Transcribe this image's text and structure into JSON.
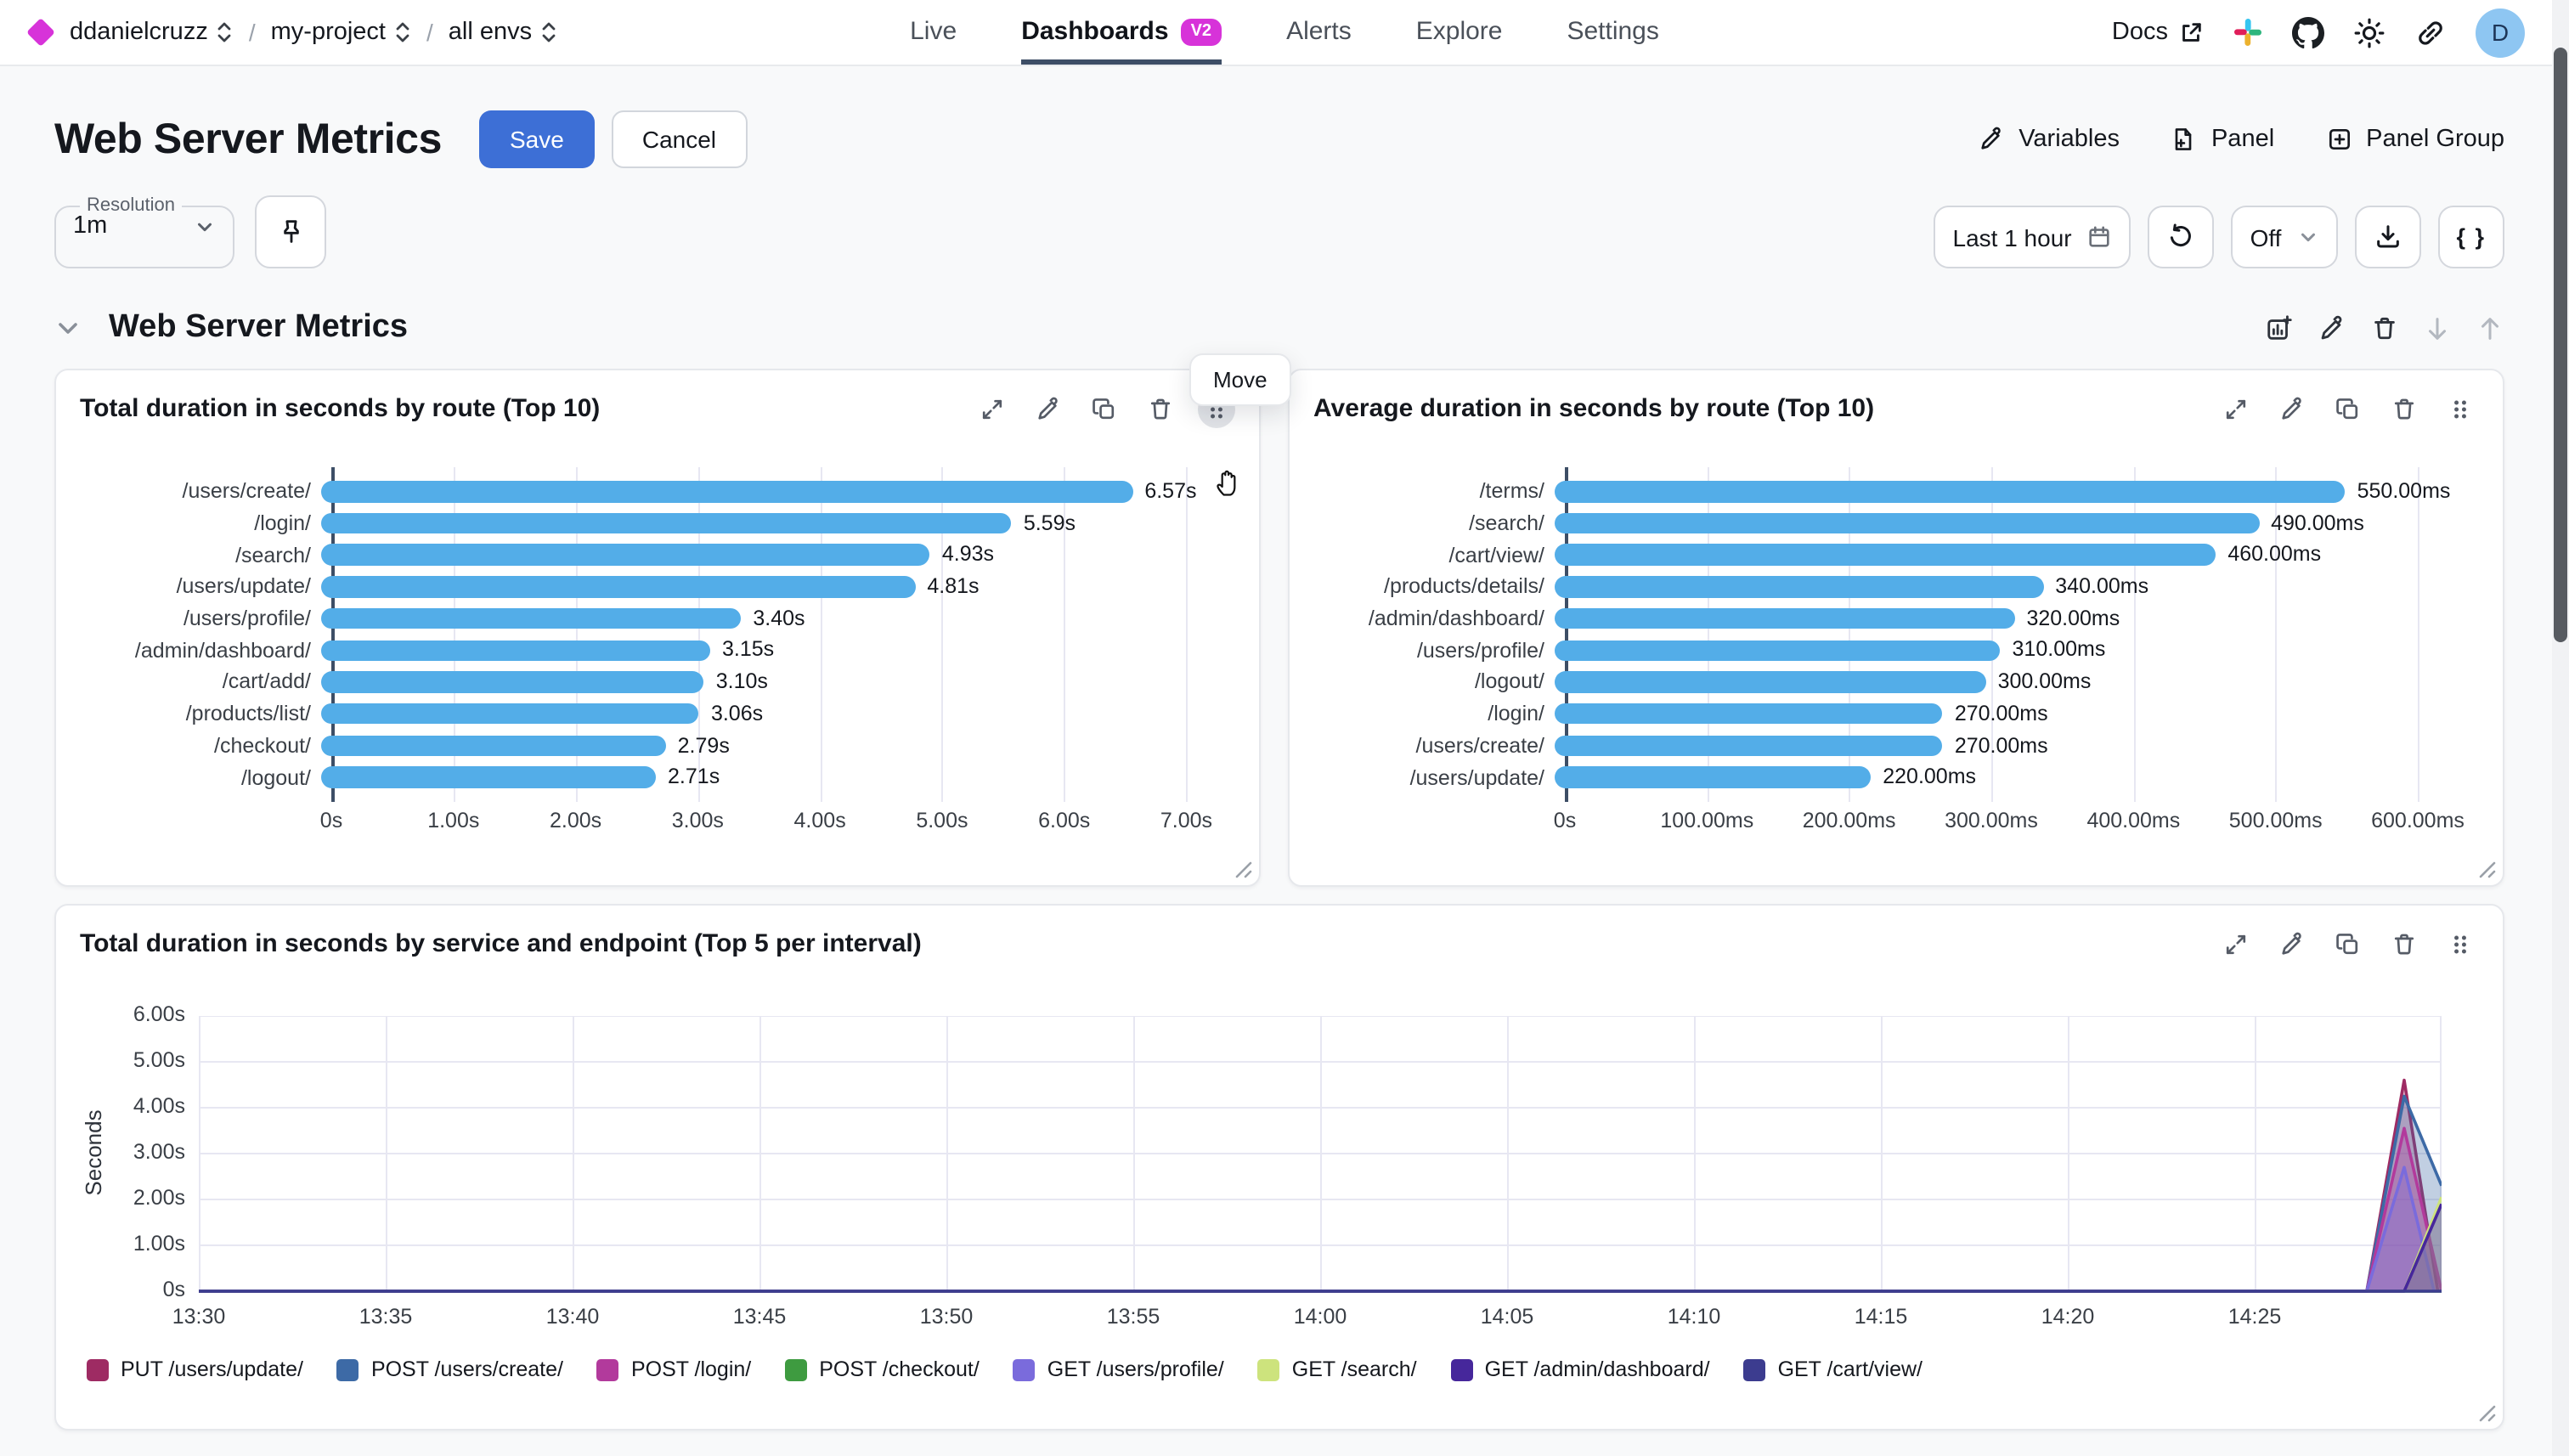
{
  "header": {
    "breadcrumb": [
      {
        "label": "ddanielcruzz"
      },
      {
        "label": "my-project"
      },
      {
        "label": "all envs"
      }
    ],
    "nav": [
      {
        "label": "Live",
        "active": false
      },
      {
        "label": "Dashboards",
        "badge": "V2",
        "active": true
      },
      {
        "label": "Alerts",
        "active": false
      },
      {
        "label": "Explore",
        "active": false
      },
      {
        "label": "Settings",
        "active": false
      }
    ],
    "docs_label": "Docs",
    "avatar_initial": "D"
  },
  "toolbar": {
    "title": "Web Server Metrics",
    "save_label": "Save",
    "cancel_label": "Cancel",
    "variables_label": "Variables",
    "panel_label": "Panel",
    "panel_group_label": "Panel Group"
  },
  "controls": {
    "resolution_label": "Resolution",
    "resolution_value": "1m",
    "time_range": "Last 1 hour",
    "refresh_interval": "Off",
    "braces_label": "{ }"
  },
  "section": {
    "title": "Web Server Metrics",
    "move_tooltip": "Move"
  },
  "colors": {
    "accent_blue": "#3d6fd6",
    "bar_blue": "#53ade8",
    "badge_magenta": "#d733d9",
    "active_tab_underline": "#3d4e66"
  },
  "chart_data": [
    {
      "type": "bar",
      "orientation": "horizontal",
      "title": "Total duration in seconds by route (Top 10)",
      "categories": [
        "/users/create/",
        "/login/",
        "/search/",
        "/users/update/",
        "/users/profile/",
        "/admin/dashboard/",
        "/cart/add/",
        "/products/list/",
        "/checkout/",
        "/logout/"
      ],
      "values": [
        6.57,
        5.59,
        4.93,
        4.81,
        3.4,
        3.15,
        3.1,
        3.06,
        2.79,
        2.71
      ],
      "value_labels": [
        "6.57s",
        "5.59s",
        "4.93s",
        "4.81s",
        "3.40s",
        "3.15s",
        "3.10s",
        "3.06s",
        "2.79s",
        "2.71s"
      ],
      "unit": "s",
      "ticks": [
        0,
        1,
        2,
        3,
        4,
        5,
        6,
        7
      ],
      "tick_labels": [
        "0s",
        "1.00s",
        "2.00s",
        "3.00s",
        "4.00s",
        "5.00s",
        "6.00s",
        "7.00s"
      ],
      "xlim": [
        0,
        7.4
      ],
      "bar_color": "#53ade8",
      "grid": true
    },
    {
      "type": "bar",
      "orientation": "horizontal",
      "title": "Average duration in seconds by route (Top 10)",
      "categories": [
        "/terms/",
        "/search/",
        "/cart/view/",
        "/products/details/",
        "/admin/dashboard/",
        "/users/profile/",
        "/logout/",
        "/login/",
        "/users/create/",
        "/users/update/"
      ],
      "values": [
        550,
        490,
        460,
        340,
        320,
        310,
        300,
        270,
        270,
        220
      ],
      "value_labels": [
        "550.00ms",
        "490.00ms",
        "460.00ms",
        "340.00ms",
        "320.00ms",
        "310.00ms",
        "300.00ms",
        "270.00ms",
        "270.00ms",
        "220.00ms"
      ],
      "unit": "ms",
      "ticks": [
        0,
        100,
        200,
        300,
        400,
        500,
        600
      ],
      "tick_labels": [
        "0s",
        "100.00ms",
        "200.00ms",
        "300.00ms",
        "400.00ms",
        "500.00ms",
        "600.00ms"
      ],
      "xlim": [
        0,
        643
      ],
      "bar_color": "#53ade8",
      "grid": true
    },
    {
      "type": "area",
      "title": "Total duration in seconds by service and endpoint (Top 5 per interval)",
      "ylabel": "Seconds",
      "y_ticks": [
        6,
        5,
        4,
        3,
        2,
        1,
        0
      ],
      "y_tick_labels": [
        "6.00s",
        "5.00s",
        "4.00s",
        "3.00s",
        "2.00s",
        "1.00s",
        "0s"
      ],
      "ylim": [
        0,
        6
      ],
      "x_domain_minutes": [
        0,
        60
      ],
      "x_start_label": "13:30",
      "x_ticks_minutes": [
        0,
        5,
        10,
        15,
        20,
        25,
        30,
        35,
        40,
        45,
        50,
        55
      ],
      "x_tick_labels": [
        "13:30",
        "13:35",
        "13:40",
        "13:45",
        "13:50",
        "13:55",
        "14:00",
        "14:05",
        "14:10",
        "14:15",
        "14:20",
        "14:25"
      ],
      "grid": true,
      "legend_position": "bottom",
      "series": [
        {
          "name": "PUT /users/update/",
          "color": "#9e2b63",
          "points": [
            [
              0,
              0
            ],
            [
              58,
              0
            ],
            [
              59,
              4.6
            ],
            [
              59.9,
              0
            ]
          ]
        },
        {
          "name": "POST /users/create/",
          "color": "#3d6aa6",
          "points": [
            [
              0,
              0
            ],
            [
              58,
              0
            ],
            [
              59,
              4.25
            ],
            [
              60,
              2.3
            ]
          ]
        },
        {
          "name": "POST /login/",
          "color": "#b23a9c",
          "points": [
            [
              0,
              0
            ],
            [
              58,
              0
            ],
            [
              59,
              3.55
            ],
            [
              60,
              0
            ]
          ]
        },
        {
          "name": "POST /checkout/",
          "color": "#3e9b40",
          "points": [
            [
              0,
              0
            ],
            [
              60,
              0
            ]
          ]
        },
        {
          "name": "GET /users/profile/",
          "color": "#7a6bdc",
          "points": [
            [
              0,
              0
            ],
            [
              58,
              0
            ],
            [
              59,
              2.7
            ],
            [
              59.8,
              0
            ]
          ]
        },
        {
          "name": "GET /search/",
          "color": "#cde37d",
          "points": [
            [
              0,
              0
            ],
            [
              59,
              0
            ],
            [
              60,
              2.05
            ]
          ]
        },
        {
          "name": "GET /admin/dashboard/",
          "color": "#46279b",
          "points": [
            [
              0,
              0
            ],
            [
              59,
              0
            ],
            [
              60,
              1.9
            ]
          ]
        },
        {
          "name": "GET /cart/view/",
          "color": "#3c3c8f",
          "points": [
            [
              0,
              0
            ],
            [
              60,
              0
            ]
          ]
        }
      ]
    }
  ]
}
